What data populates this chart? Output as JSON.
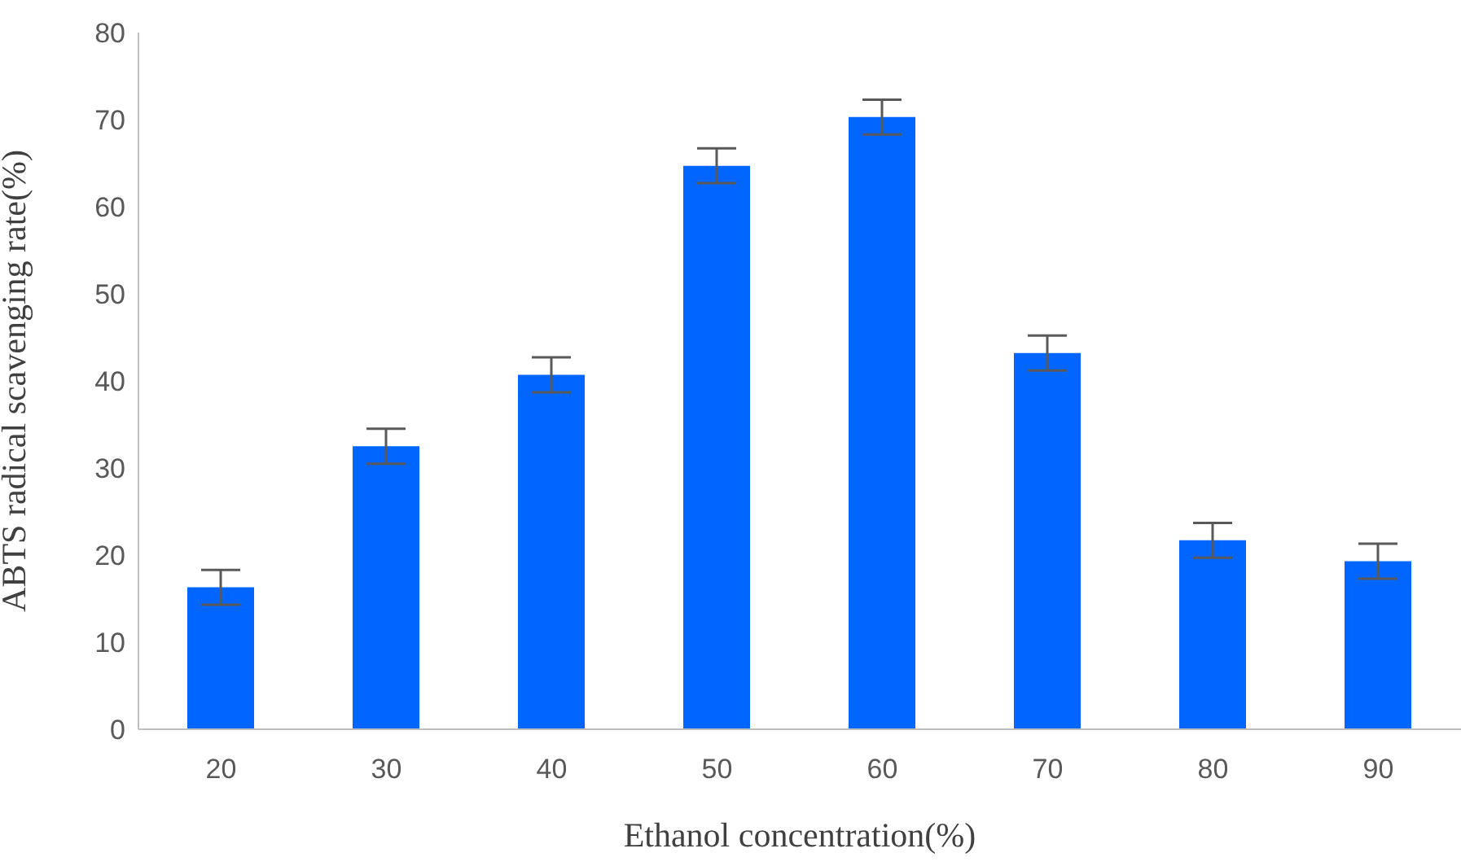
{
  "chart_data": {
    "type": "bar",
    "xlabel": "Ethanol concentration(%)",
    "ylabel": "ABTS radical scavenging rate(%)",
    "categories": [
      "20",
      "30",
      "40",
      "50",
      "60",
      "70",
      "80",
      "90"
    ],
    "values": [
      16.3,
      32.5,
      40.7,
      64.7,
      70.3,
      43.2,
      21.7,
      19.3
    ],
    "errors": [
      2,
      2,
      2,
      2,
      2,
      2,
      2,
      2
    ],
    "color": "#0066ff",
    "ylim": [
      0,
      80
    ],
    "yticks": [
      0,
      10,
      20,
      30,
      40,
      50,
      60,
      70,
      80
    ],
    "grid": false,
    "legend": false
  }
}
